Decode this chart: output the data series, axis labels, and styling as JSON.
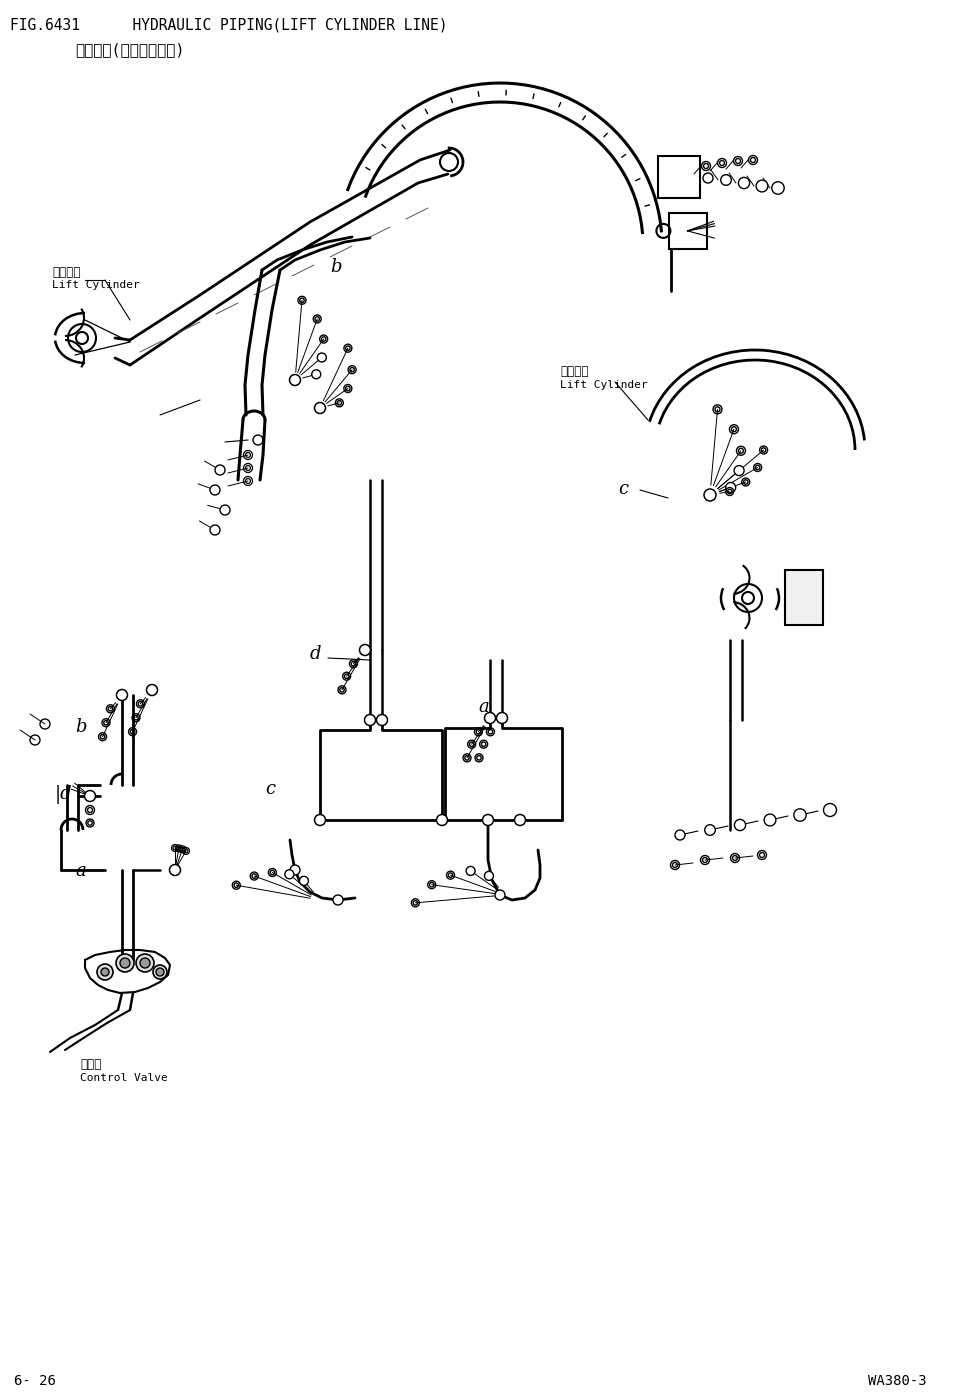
{
  "title_line1": "FIG.6431      HYDRAULIC PIPING(LIFT CYLINDER LINE)",
  "title_line2": "液压配管(举升油缸配管)",
  "footer_left": "6- 26",
  "footer_right": "WA380-3",
  "lift_cyl_left_cn": "举升油缸",
  "lift_cyl_left_en": "Lift Cylinder",
  "lift_cyl_right_cn": "举升油缸",
  "lift_cyl_right_en": "Lift Cylinder",
  "ctrl_valve_cn": "控制阀",
  "ctrl_valve_en": "Control Valve",
  "bg_color": "#ffffff",
  "lc": "#000000",
  "tc": "#000000",
  "fig_width": 9.73,
  "fig_height": 14.0,
  "dpi": 100
}
